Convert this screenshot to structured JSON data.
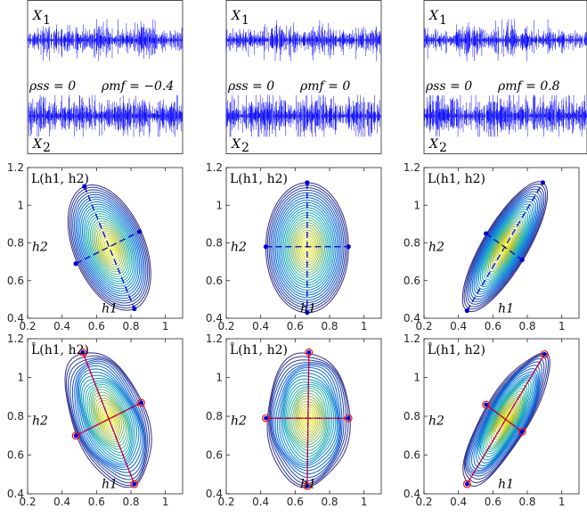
{
  "chart_data": [
    {
      "type": "line",
      "row": "signals",
      "rho_ss": 0,
      "rho_mf": -0.4,
      "series": [
        {
          "name": "X1"
        },
        {
          "name": "X2"
        }
      ],
      "labels": {
        "top": "X",
        "top_sub": "1",
        "bottom": "X",
        "bottom_sub": "2",
        "rho_ss": "ρss = 0",
        "rho_mf": "ρmf = −0.4"
      }
    },
    {
      "type": "line",
      "row": "signals",
      "rho_ss": 0,
      "rho_mf": 0,
      "series": [
        {
          "name": "X1"
        },
        {
          "name": "X2"
        }
      ],
      "labels": {
        "top": "X",
        "top_sub": "1",
        "bottom": "X",
        "bottom_sub": "2",
        "rho_ss": "ρss = 0",
        "rho_mf": "ρmf = 0"
      }
    },
    {
      "type": "line",
      "row": "signals",
      "rho_ss": 0,
      "rho_mf": 0.8,
      "series": [
        {
          "name": "X1"
        },
        {
          "name": "X2"
        }
      ],
      "labels": {
        "top": "X",
        "top_sub": "1",
        "bottom": "X",
        "bottom_sub": "2",
        "rho_ss": "ρss = 0",
        "rho_mf": "ρmf = 0.8"
      }
    },
    {
      "type": "contour",
      "row": "true-likelihood",
      "title": "L(h1, h2)",
      "xlabel": "h1",
      "ylabel": "h2",
      "xlim": [
        0.2,
        1.1
      ],
      "ylim": [
        0.4,
        1.2
      ],
      "xticks": [
        "0.2",
        "0.4",
        "0.6",
        "0.8",
        "1"
      ],
      "yticks": [
        "0.4",
        "0.6",
        "0.8",
        "1",
        "1.2"
      ],
      "center": [
        0.67,
        0.78
      ],
      "major_axis_ends": [
        [
          0.53,
          1.1
        ],
        [
          0.82,
          0.45
        ]
      ],
      "minor_axis_ends": [
        [
          0.48,
          0.69
        ],
        [
          0.85,
          0.86
        ]
      ]
    },
    {
      "type": "contour",
      "row": "true-likelihood",
      "title": "L(h1, h2)",
      "xlabel": "h1",
      "ylabel": "h2",
      "xlim": [
        0.2,
        1.1
      ],
      "ylim": [
        0.4,
        1.2
      ],
      "xticks": [
        "0.2",
        "0.4",
        "0.6",
        "0.8",
        "1"
      ],
      "yticks": [
        "0.4",
        "0.6",
        "0.8",
        "1",
        "1.2"
      ],
      "center": [
        0.67,
        0.78
      ],
      "major_axis_ends": [
        [
          0.67,
          1.12
        ],
        [
          0.67,
          0.43
        ]
      ],
      "minor_axis_ends": [
        [
          0.43,
          0.78
        ],
        [
          0.91,
          0.78
        ]
      ]
    },
    {
      "type": "contour",
      "row": "true-likelihood",
      "title": "L(h1, h2)",
      "xlabel": "h1",
      "ylabel": "h2",
      "xlim": [
        0.2,
        1.1
      ],
      "ylim": [
        0.4,
        1.2
      ],
      "xticks": [
        "0.2",
        "0.4",
        "0.6",
        "0.8",
        "1"
      ],
      "yticks": [
        "0.4",
        "0.6",
        "0.8",
        "1",
        "1.2"
      ],
      "center": [
        0.67,
        0.78
      ],
      "major_axis_ends": [
        [
          0.45,
          0.44
        ],
        [
          0.89,
          1.12
        ]
      ],
      "minor_axis_ends": [
        [
          0.56,
          0.85
        ],
        [
          0.77,
          0.71
        ]
      ]
    },
    {
      "type": "contour",
      "row": "estimated-likelihood",
      "title": "L̂(h1, h2)",
      "xlabel": "h1",
      "ylabel": "h2",
      "xlim": [
        0.2,
        1.1
      ],
      "ylim": [
        0.4,
        1.2
      ],
      "xticks": [
        "0.2",
        "0.4",
        "0.6",
        "0.8",
        "1"
      ],
      "yticks": [
        "0.4",
        "0.6",
        "0.8",
        "1",
        "1.2"
      ],
      "center": [
        0.67,
        0.78
      ],
      "major_axis_ends": [
        [
          0.52,
          1.13
        ],
        [
          0.82,
          0.45
        ]
      ],
      "minor_axis_ends": [
        [
          0.48,
          0.7
        ],
        [
          0.86,
          0.87
        ]
      ]
    },
    {
      "type": "contour",
      "row": "estimated-likelihood",
      "title": "L̂(h1, h2)",
      "xlabel": "h1",
      "ylabel": "h2",
      "xlim": [
        0.2,
        1.1
      ],
      "ylim": [
        0.4,
        1.2
      ],
      "xticks": [
        "0.2",
        "0.4",
        "0.6",
        "0.8",
        "1"
      ],
      "yticks": [
        "0.4",
        "0.6",
        "0.8",
        "1",
        "1.2"
      ],
      "center": [
        0.67,
        0.78
      ],
      "major_axis_ends": [
        [
          0.68,
          1.13
        ],
        [
          0.67,
          0.44
        ]
      ],
      "minor_axis_ends": [
        [
          0.43,
          0.79
        ],
        [
          0.91,
          0.79
        ]
      ]
    },
    {
      "type": "contour",
      "row": "estimated-likelihood",
      "title": "L̂(h1, h2)",
      "xlabel": "h1",
      "ylabel": "h2",
      "xlim": [
        0.2,
        1.1
      ],
      "ylim": [
        0.4,
        1.2
      ],
      "xticks": [
        "0.2",
        "0.4",
        "0.6",
        "0.8",
        "1"
      ],
      "yticks": [
        "0.4",
        "0.6",
        "0.8",
        "1",
        "1.2"
      ],
      "center": [
        0.67,
        0.78
      ],
      "major_axis_ends": [
        [
          0.45,
          0.45
        ],
        [
          0.9,
          1.12
        ]
      ],
      "minor_axis_ends": [
        [
          0.56,
          0.86
        ],
        [
          0.77,
          0.72
        ]
      ]
    }
  ],
  "colors": {
    "signal": "#0000ff",
    "axis_line": "#0000cc",
    "estimate_line": "#c8003c",
    "marker_ring": "#ff0000",
    "contour_low": "#1f3f9a",
    "contour_mid": "#19a9c0",
    "contour_high": "#fde725"
  }
}
